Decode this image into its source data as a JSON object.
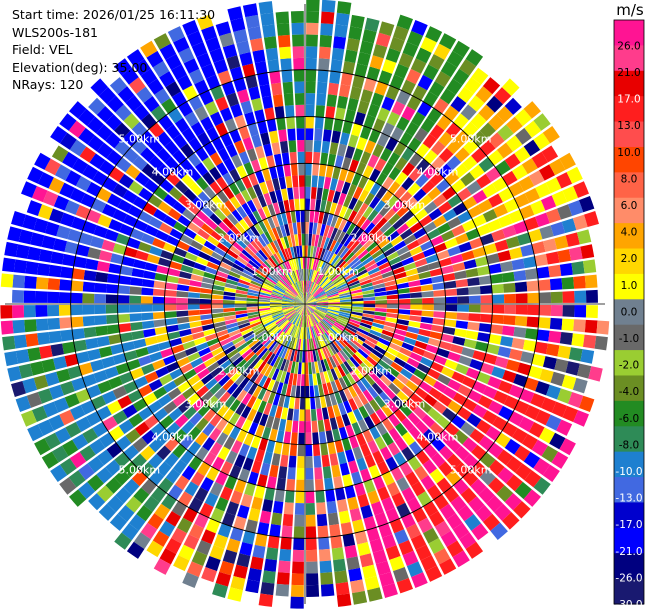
{
  "header": {
    "start_time": "Start time: 2026/01/25 16:11:30",
    "instrument": "WLS200s-181",
    "field": "Field: VEL",
    "elevation": "Elevation(deg): 35.00",
    "nrays": "NRays: 120"
  },
  "chart_data": {
    "type": "heatmap",
    "projection": "polar-ppi",
    "field": "VEL",
    "unit": "m/s",
    "elevation_deg": 35.0,
    "n_rays": 120,
    "range_rings_km": [
      1,
      2,
      3,
      4,
      5
    ],
    "range_ring_labels": [
      "1.00km",
      "2.00km",
      "3.00km",
      "4.00km",
      "5.00km"
    ],
    "max_range_km": 6.4,
    "grid": true,
    "colorbar": {
      "label": "m/s",
      "ticks": [
        "26.0",
        "21.0",
        "17.0",
        "13.0",
        "10.0",
        "8.0",
        "6.0",
        "4.0",
        "2.0",
        "1.0",
        "0.0",
        "-1.0",
        "-2.0",
        "-4.0",
        "-6.0",
        "-8.0",
        "-10.0",
        "-13.0",
        "-17.0",
        "-21.0",
        "-26.0",
        "-30.0"
      ],
      "colors": [
        "#ff1493",
        "#ff3c8c",
        "#e80000",
        "#ff1e1e",
        "#ff4d4d",
        "#ff4500",
        "#ff6347",
        "#ff8c69",
        "#ffa500",
        "#ffd700",
        "#ffff00",
        "#708090",
        "#696969",
        "#9acd32",
        "#6b8e23",
        "#228b22",
        "#2e8b57",
        "#1e80d0",
        "#4169e1",
        "#0000cd",
        "#0000ff",
        "#000080",
        "#191970"
      ]
    }
  }
}
